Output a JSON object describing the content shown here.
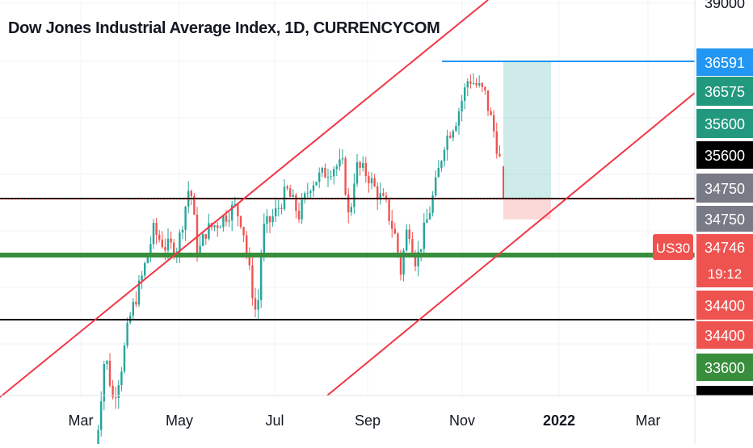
{
  "chart_data": {
    "type": "candlestick",
    "title": "Dow Jones Industrial Average Index, 1D, CURRENCYCOM",
    "x_ticks": [
      "Mar",
      "May",
      "Jul",
      "Sep",
      "Nov",
      "2022",
      "Mar"
    ],
    "y_scale": {
      "top_label": "39000"
    },
    "price_tags": [
      {
        "label": "36591",
        "bg": "#2196F3",
        "fg": "#ffffff"
      },
      {
        "label": "36575",
        "bg": "#22997E",
        "fg": "#ffffff"
      },
      {
        "label": "35600",
        "bg": "#22997E",
        "fg": "#ffffff"
      },
      {
        "label": "35600",
        "bg": "#000000",
        "fg": "#ffffff"
      },
      {
        "label": "34750",
        "bg": "#787B86",
        "fg": "#ffffff"
      },
      {
        "label": "34750",
        "bg": "#787B86",
        "fg": "#ffffff"
      },
      {
        "label": "34746",
        "sub": "19:12",
        "bg": "#EF5350",
        "fg": "#ffffff"
      },
      {
        "label": "34400",
        "bg": "#EF5350",
        "fg": "#ffffff"
      },
      {
        "label": "34400",
        "bg": "#EF5350",
        "fg": "#ffffff"
      },
      {
        "label": "33600",
        "bg": "#388E3C",
        "fg": "#ffffff"
      }
    ],
    "symbol_tag": "US30",
    "horizontal_levels": [
      {
        "price": 35600,
        "color": "#2196F3"
      },
      {
        "price": 34750,
        "color": "#000000"
      },
      {
        "price": 34400,
        "color": "#388E3C"
      },
      {
        "price": 34000,
        "color": "#000000"
      }
    ],
    "current_price": 34746,
    "colors": {
      "up": "#26A69A",
      "down": "#EF5350",
      "channel": "#F23645"
    },
    "position": {
      "type": "long",
      "entry": 34746,
      "target": 35600,
      "stop": 34700
    }
  }
}
